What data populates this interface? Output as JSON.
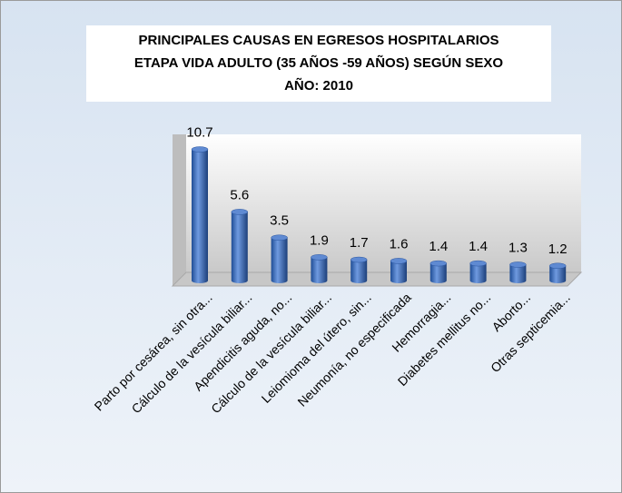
{
  "chart_data": {
    "type": "bar3d",
    "title": [
      "PRINCIPALES CAUSAS EN EGRESOS HOSPITALARIOS",
      "ETAPA VIDA ADULTO (35 AÑOS -59 AÑOS) SEGÚN SEXO",
      "AÑO: 2010"
    ],
    "categories": [
      "Parto por cesárea, sin otra...",
      "Cálculo de la vesícula biliar...",
      "Apendicitis aguda, no...",
      "Cálculo de la vesícula biliar...",
      "Leiomioma del útero, sin...",
      "Neumonía, no especificada",
      "Hemorragia...",
      "Diabetes mellitus no...",
      "Aborto...",
      "Otras septicemia..."
    ],
    "values": [
      10.7,
      5.6,
      3.5,
      1.9,
      1.7,
      1.6,
      1.4,
      1.4,
      1.3,
      1.2
    ],
    "color": "#3a6fc4",
    "ylim": [
      0,
      12
    ]
  }
}
